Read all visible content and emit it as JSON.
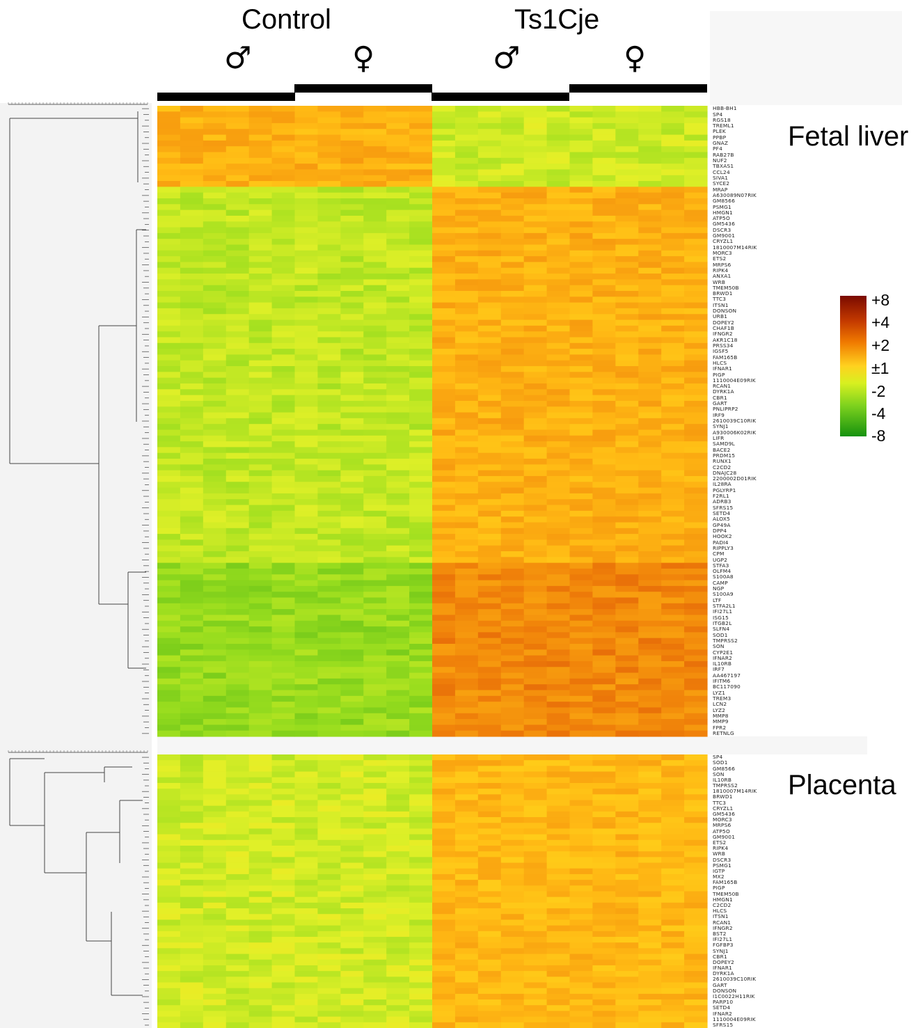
{
  "chart_data": {
    "type": "heatmap",
    "groups": [
      {
        "label": "Control",
        "subgroups": [
          "♂",
          "♀"
        ]
      },
      {
        "label": "Ts1Cje",
        "subgroups": [
          "♂",
          "♀"
        ]
      }
    ],
    "columns_per_subgroup": 6,
    "panels": [
      {
        "title": "Fetal liver",
        "genes": [
          "HBB-BH1",
          "SP4",
          "RGS18",
          "TREML1",
          "PLEK",
          "PPBP",
          "GNAZ",
          "PF4",
          "RAB27B",
          "NUF2",
          "TBXAS1",
          "CCL24",
          "SIVA1",
          "SYCE2",
          "MRAP",
          "A630089N07RIK",
          "GM8566",
          "PSMG1",
          "HMGN1",
          "ATP5O",
          "GM5436",
          "DSCR3",
          "GM9001",
          "CRYZL1",
          "1810007M14RIK",
          "MORC3",
          "ETS2",
          "MRPS6",
          "RIPK4",
          "ANXA1",
          "WRB",
          "TMEM50B",
          "BRWD1",
          "TTC3",
          "ITSN1",
          "DONSON",
          "URB1",
          "DOPEY2",
          "CHAF1B",
          "IFNGR2",
          "AKR1C18",
          "PRSS34",
          "IGSF5",
          "FAM165B",
          "HLCS",
          "IFNAR1",
          "PIGP",
          "1110004E09RIK",
          "RCAN1",
          "DYRK1A",
          "CBR1",
          "GART",
          "PNLIPRP2",
          "IRF9",
          "2610039C10RIK",
          "SYNJ1",
          "A930006K02RIK",
          "LIFR",
          "SAMD9L",
          "BACE2",
          "PRDM15",
          "RUNX1",
          "C2CD2",
          "DNAJC28",
          "2200002D01RIK",
          "IL28RA",
          "PGLYRP1",
          "F2RL1",
          "ADRB3",
          "SFRS15",
          "SETD4",
          "ALOX5",
          "GP49A",
          "DPP4",
          "HOOK2",
          "PADI4",
          "RIPPLY3",
          "CPM",
          "UGP2",
          "STFA3",
          "OLFM4",
          "S100A8",
          "CAMP",
          "NGP",
          "S100A9",
          "LTF",
          "STFA2L1",
          "IFI27L1",
          "ISG15",
          "ITGB2L",
          "SLFN4",
          "SOD1",
          "TMPRSS2",
          "SON",
          "CYP2E1",
          "IFNAR2",
          "IL10RB",
          "IRF7",
          "AA467197",
          "IFITM6",
          "BC117090",
          "LYZ1",
          "TREM3",
          "LCN2",
          "LYZ2",
          "MMP8",
          "MMP9",
          "FPR2",
          "RETNLG"
        ],
        "pattern": "top 14 rows higher in Control; remaining rows higher in Ts1Cje"
      },
      {
        "title": "Placenta",
        "genes": [
          "SP4",
          "SOD1",
          "GM8566",
          "SON",
          "IL10RB",
          "TMPRSS2",
          "1810007M14RIK",
          "BRWD1",
          "TTC3",
          "CRYZL1",
          "GM5436",
          "MORC3",
          "MRPS6",
          "ATP5O",
          "GM9001",
          "ETS2",
          "RIPK4",
          "WRB",
          "DSCR3",
          "PSMG1",
          "IGTP",
          "MX2",
          "FAM165B",
          "PIGP",
          "TMEM50B",
          "HMGN1",
          "C2CD2",
          "HLCS",
          "ITSN1",
          "RCAN1",
          "IFNGR2",
          "BST2",
          "IFI27L1",
          "FGFBP3",
          "SYNJ1",
          "CBR1",
          "DOPEY2",
          "IFNAR1",
          "DYRK1A",
          "2610039C10RIK",
          "GART",
          "DONSON",
          "I1C0022H11RIK",
          "PARP10",
          "SETD4",
          "IFNAR2",
          "1110004E09RIK",
          "SFRS15"
        ],
        "pattern": "all rows higher in Ts1Cje"
      }
    ],
    "legend": {
      "ticks": [
        "+8",
        "+4",
        "+2",
        "±1",
        "-2",
        "-4",
        "-8"
      ],
      "colors": [
        "#7a0a00",
        "#c43a00",
        "#f07a00",
        "#ffd21f",
        "#d8f020",
        "#7ed21e",
        "#16920e"
      ]
    }
  }
}
